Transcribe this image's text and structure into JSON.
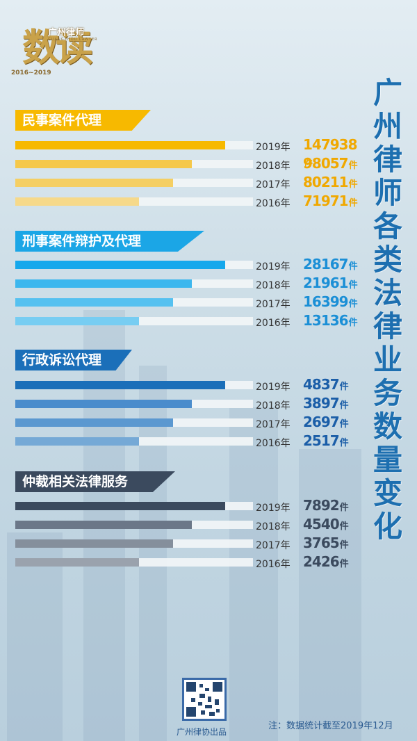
{
  "logo": {
    "main_text": "数读",
    "sub_text": "广州律师",
    "tiny_text": "GUANGZHOU LAWYER",
    "years": "2016~2019"
  },
  "title": "广州律师各类法律业务数量变化",
  "unit": "件",
  "colors": {
    "title": "#1d6fb0",
    "civil": "#f7b900",
    "criminal": "#1ba6e6",
    "admin": "#1b6fb9",
    "arbitration": "#3b4a5e"
  },
  "chart_data": [
    {
      "type": "bar",
      "title": "民事案件代理",
      "categories": [
        "2019年",
        "2018年",
        "2017年",
        "2016年"
      ],
      "values": [
        147938,
        98057,
        80211,
        71971
      ],
      "labels": [
        "147938",
        "98057",
        "80211",
        "71971"
      ]
    },
    {
      "type": "bar",
      "title": "刑事案件辩护及代理",
      "categories": [
        "2019年",
        "2018年",
        "2017年",
        "2016年"
      ],
      "values": [
        28167,
        21961,
        16399,
        13136
      ],
      "labels": [
        "28167",
        "21961",
        "16399",
        "13136"
      ]
    },
    {
      "type": "bar",
      "title": "行政诉讼代理",
      "categories": [
        "2019年",
        "2018年",
        "2017年",
        "2016年"
      ],
      "values": [
        4837,
        3897,
        2697,
        2517
      ],
      "labels": [
        "4837",
        "3897",
        "2697",
        "2517"
      ]
    },
    {
      "type": "bar",
      "title": "仲裁相关法律服务",
      "categories": [
        "2019年",
        "2018年",
        "2017年",
        "2016年"
      ],
      "values": [
        7892,
        4540,
        3765,
        2426
      ],
      "labels": [
        "7892",
        "4540",
        "3765",
        "2426"
      ]
    }
  ],
  "sections_style": [
    {
      "banner_color": "#f7b900",
      "bar_colors": [
        "#f7b900",
        "#f5c84a",
        "#f5cf63",
        "#f6d98a"
      ],
      "value_color": "#f0a800"
    },
    {
      "banner_color": "#1ba6e6",
      "bar_colors": [
        "#15a8ec",
        "#3cb7ee",
        "#55c1f0",
        "#77cdf2"
      ],
      "value_color": "#1b8fd6"
    },
    {
      "banner_color": "#1b6fb9",
      "bar_colors": [
        "#1b6fb9",
        "#4a8ccc",
        "#5b98d0",
        "#75a9d6"
      ],
      "value_color": "#1b5ea8"
    },
    {
      "banner_color": "#3b4a5e",
      "bar_colors": [
        "#3b4a5e",
        "#6b7788",
        "#858f9c",
        "#9aa2ad"
      ],
      "value_color": "#3b4a5e"
    }
  ],
  "footer": {
    "qr_label": "广州律协出品",
    "note": "注：数据统计截至2019年12月"
  }
}
